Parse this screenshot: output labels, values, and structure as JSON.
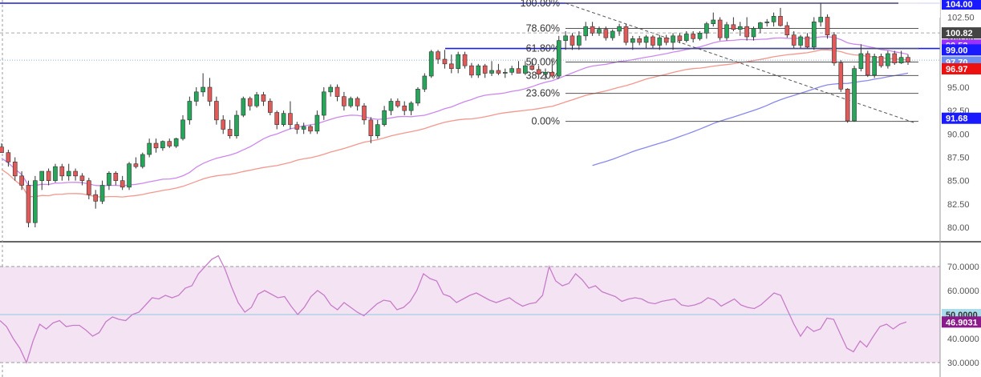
{
  "colors": {
    "up": "#26a65b",
    "down": "#e05a5a",
    "ma_fast": "#f4978e",
    "ma_mid": "#cc88ee",
    "ma_slow": "#8888ee",
    "resistance": "#1f1fcc",
    "fib": "#555555",
    "rsi_line": "#c77dc9",
    "rsi_band": "#f3e3f3"
  },
  "chart_data": [
    {
      "type": "candlestick",
      "ylim": [
        78.5,
        104.0
      ],
      "yticks": [
        "102.50",
        "100.00",
        "97.50",
        "95.00",
        "92.50",
        "90.00",
        "87.50",
        "85.00",
        "82.50",
        "80.00"
      ],
      "ytick_values": [
        102.5,
        100.0,
        97.5,
        95.0,
        92.5,
        90.0,
        87.5,
        85.0,
        82.5,
        80.0
      ],
      "price_tags": [
        {
          "label": "104.00",
          "value": 104.0,
          "bg": "#1a1aff",
          "fg": "#ffffff"
        },
        {
          "label": "100.82",
          "value": 100.82,
          "bg": "#444444",
          "fg": "#ffffff"
        },
        {
          "label": "99.52",
          "value": 99.52,
          "bg": "#9b30ff",
          "fg": "#ffffff"
        },
        {
          "label": "99.00",
          "value": 99.0,
          "bg": "#1a1aff",
          "fg": "#ffffff"
        },
        {
          "label": "97.70",
          "value": 97.7,
          "bg": "#6f8fef",
          "fg": "#ffffff"
        },
        {
          "label": "96.97",
          "value": 96.97,
          "bg": "#ee1111",
          "fg": "#ffffff"
        },
        {
          "label": "91.68",
          "value": 91.68,
          "bg": "#1a1aff",
          "fg": "#ffffff"
        }
      ],
      "fibonacci": [
        {
          "label": "100.00%",
          "value": 104.0
        },
        {
          "label": "78.60%",
          "value": 101.3
        },
        {
          "label": "61.80%",
          "value": 99.15
        },
        {
          "label": "50.00%",
          "value": 97.7
        },
        {
          "label": "38.20%",
          "value": 96.25
        },
        {
          "label": "23.60%",
          "value": 94.35
        },
        {
          "label": "0.00%",
          "value": 91.35
        }
      ],
      "resistance_levels": [
        104.0,
        99.15
      ],
      "reference_lines": [
        100.82,
        97.9
      ],
      "candles": [
        [
          88.6,
          89.0,
          88.0,
          88.0
        ],
        [
          88.0,
          88.3,
          86.5,
          87.0
        ],
        [
          87.0,
          87.5,
          85.0,
          85.5
        ],
        [
          85.5,
          86.0,
          84.0,
          84.5
        ],
        [
          84.5,
          85.0,
          80.0,
          80.5
        ],
        [
          80.5,
          85.5,
          80.0,
          85.0
        ],
        [
          85.0,
          86.0,
          84.0,
          86.0
        ],
        [
          86.0,
          86.3,
          84.5,
          85.0
        ],
        [
          85.0,
          86.8,
          84.8,
          86.5
        ],
        [
          86.5,
          86.8,
          85.0,
          85.5
        ],
        [
          85.5,
          86.8,
          85.0,
          86.0
        ],
        [
          86.0,
          86.3,
          85.0,
          85.5
        ],
        [
          85.5,
          85.8,
          84.5,
          85.0
        ],
        [
          85.0,
          85.3,
          83.0,
          83.5
        ],
        [
          83.5,
          84.0,
          82.0,
          82.8
        ],
        [
          82.8,
          85.0,
          82.5,
          84.5
        ],
        [
          84.5,
          86.0,
          84.0,
          85.8
        ],
        [
          85.8,
          86.0,
          84.5,
          85.0
        ],
        [
          85.0,
          85.5,
          84.0,
          84.3
        ],
        [
          84.3,
          87.0,
          84.0,
          86.8
        ],
        [
          86.8,
          87.5,
          86.3,
          86.5
        ],
        [
          86.5,
          88.0,
          86.3,
          87.8
        ],
        [
          87.8,
          89.5,
          87.5,
          89.0
        ],
        [
          89.0,
          89.5,
          88.0,
          88.5
        ],
        [
          88.5,
          89.3,
          88.2,
          89.2
        ],
        [
          89.2,
          89.5,
          88.5,
          88.7
        ],
        [
          88.7,
          89.6,
          88.5,
          89.5
        ],
        [
          89.5,
          92.0,
          89.3,
          91.5
        ],
        [
          91.5,
          94.0,
          91.0,
          93.5
        ],
        [
          93.5,
          95.0,
          93.0,
          94.5
        ],
        [
          94.5,
          96.5,
          94.0,
          95.0
        ],
        [
          95.0,
          96.0,
          93.0,
          93.5
        ],
        [
          93.5,
          94.0,
          91.0,
          91.5
        ],
        [
          91.5,
          92.0,
          90.0,
          90.5
        ],
        [
          90.5,
          91.5,
          89.5,
          89.8
        ],
        [
          89.8,
          92.5,
          89.5,
          92.0
        ],
        [
          92.0,
          94.0,
          91.8,
          93.8
        ],
        [
          93.8,
          94.0,
          92.5,
          93.0
        ],
        [
          93.0,
          94.5,
          92.8,
          94.2
        ],
        [
          94.2,
          94.5,
          93.0,
          93.5
        ],
        [
          93.5,
          93.8,
          92.0,
          92.3
        ],
        [
          92.3,
          92.5,
          90.5,
          91.0
        ],
        [
          91.0,
          92.5,
          90.8,
          92.2
        ],
        [
          92.2,
          93.5,
          90.5,
          91.0
        ],
        [
          91.0,
          91.3,
          90.0,
          90.5
        ],
        [
          90.5,
          91.2,
          90.0,
          90.8
        ],
        [
          90.8,
          91.0,
          90.0,
          90.3
        ],
        [
          90.3,
          92.5,
          90.0,
          92.0
        ],
        [
          92.0,
          95.0,
          91.5,
          94.5
        ],
        [
          94.5,
          95.3,
          94.0,
          95.0
        ],
        [
          95.0,
          95.3,
          93.5,
          94.0
        ],
        [
          94.0,
          94.5,
          92.5,
          93.0
        ],
        [
          93.0,
          94.0,
          92.8,
          93.8
        ],
        [
          93.8,
          94.0,
          92.5,
          93.0
        ],
        [
          93.0,
          93.3,
          91.0,
          91.5
        ],
        [
          91.5,
          91.8,
          89.0,
          89.8
        ],
        [
          89.8,
          91.5,
          89.5,
          91.0
        ],
        [
          91.0,
          93.0,
          90.8,
          92.5
        ],
        [
          92.5,
          93.8,
          92.0,
          93.5
        ],
        [
          93.5,
          93.8,
          92.8,
          93.0
        ],
        [
          93.0,
          93.5,
          92.0,
          92.5
        ],
        [
          92.5,
          93.5,
          92.0,
          93.3
        ],
        [
          93.3,
          95.0,
          93.0,
          94.8
        ],
        [
          94.8,
          96.5,
          94.5,
          96.2
        ],
        [
          96.2,
          99.0,
          96.0,
          98.8
        ],
        [
          98.8,
          99.0,
          97.5,
          98.0
        ],
        [
          98.0,
          99.0,
          97.0,
          97.5
        ],
        [
          97.5,
          98.5,
          96.5,
          97.0
        ],
        [
          97.0,
          98.8,
          96.5,
          98.5
        ],
        [
          98.5,
          98.8,
          97.0,
          97.3
        ],
        [
          97.3,
          97.6,
          96.0,
          96.3
        ],
        [
          96.3,
          97.5,
          96.0,
          97.3
        ],
        [
          97.3,
          97.5,
          96.0,
          96.5
        ],
        [
          96.5,
          97.8,
          96.2,
          96.8
        ],
        [
          96.8,
          97.5,
          96.3,
          96.5
        ],
        [
          96.5,
          97.0,
          96.0,
          96.6
        ],
        [
          96.6,
          97.3,
          96.3,
          97.0
        ],
        [
          97.0,
          97.8,
          96.5,
          96.5
        ],
        [
          96.5,
          97.8,
          96.3,
          97.3
        ],
        [
          97.3,
          98.0,
          96.8,
          96.9
        ],
        [
          96.9,
          97.3,
          96.0,
          96.4
        ],
        [
          96.4,
          97.0,
          95.8,
          96.6
        ],
        [
          96.6,
          98.0,
          96.0,
          96.2
        ],
        [
          96.2,
          100.5,
          96.0,
          100.0
        ],
        [
          100.0,
          101.0,
          99.0,
          100.5
        ],
        [
          100.5,
          100.8,
          99.0,
          99.5
        ],
        [
          99.5,
          101.0,
          99.0,
          100.5
        ],
        [
          100.5,
          102.0,
          100.0,
          101.5
        ],
        [
          101.5,
          102.0,
          100.5,
          100.8
        ],
        [
          100.8,
          101.5,
          100.5,
          101.2
        ],
        [
          101.2,
          101.5,
          100.0,
          100.3
        ],
        [
          100.3,
          101.2,
          100.0,
          101.0
        ],
        [
          101.0,
          101.8,
          100.5,
          101.5
        ],
        [
          101.5,
          101.8,
          99.5,
          99.8
        ],
        [
          99.8,
          100.5,
          99.0,
          100.2
        ],
        [
          100.2,
          100.5,
          99.5,
          99.8
        ],
        [
          99.8,
          100.6,
          99.2,
          100.4
        ],
        [
          100.4,
          100.6,
          99.2,
          99.5
        ],
        [
          99.5,
          100.6,
          99.0,
          100.3
        ],
        [
          100.3,
          100.6,
          99.5,
          99.8
        ],
        [
          99.8,
          100.8,
          99.0,
          100.5
        ],
        [
          100.5,
          100.8,
          99.7,
          100.0
        ],
        [
          100.0,
          101.0,
          99.8,
          100.7
        ],
        [
          100.7,
          101.0,
          99.8,
          100.2
        ],
        [
          100.2,
          101.0,
          100.0,
          100.8
        ],
        [
          100.8,
          102.0,
          100.2,
          101.8
        ],
        [
          101.8,
          103.0,
          101.5,
          102.2
        ],
        [
          102.2,
          102.5,
          100.0,
          100.3
        ],
        [
          100.3,
          102.0,
          100.0,
          101.7
        ],
        [
          101.7,
          102.5,
          101.0,
          101.2
        ],
        [
          101.2,
          102.0,
          100.5,
          101.5
        ],
        [
          101.5,
          102.5,
          100.0,
          100.4
        ],
        [
          100.4,
          101.5,
          100.0,
          101.3
        ],
        [
          101.3,
          102.0,
          100.8,
          101.9
        ],
        [
          101.9,
          102.3,
          101.5,
          102.0
        ],
        [
          102.0,
          103.0,
          101.5,
          102.6
        ],
        [
          102.6,
          103.5,
          101.5,
          101.6
        ],
        [
          101.6,
          102.0,
          100.3,
          100.6
        ],
        [
          100.6,
          101.0,
          99.2,
          99.5
        ],
        [
          99.5,
          100.6,
          99.2,
          100.4
        ],
        [
          100.4,
          100.8,
          99.2,
          99.3
        ],
        [
          99.3,
          102.5,
          99.0,
          102.0
        ],
        [
          102.0,
          104.0,
          101.5,
          102.5
        ],
        [
          102.5,
          102.8,
          100.2,
          100.6
        ],
        [
          100.6,
          100.9,
          97.3,
          97.6
        ],
        [
          97.6,
          97.9,
          94.5,
          94.8
        ],
        [
          94.8,
          94.9,
          91.2,
          91.4
        ],
        [
          91.4,
          97.3,
          91.3,
          97.0
        ],
        [
          97.0,
          99.6,
          96.7,
          98.6
        ],
        [
          98.6,
          98.9,
          96.1,
          96.3
        ],
        [
          96.3,
          98.6,
          96.0,
          98.3
        ],
        [
          98.3,
          98.6,
          97.1,
          97.3
        ],
        [
          97.3,
          98.9,
          97.0,
          98.6
        ],
        [
          98.6,
          98.9,
          97.4,
          97.6
        ],
        [
          97.6,
          98.9,
          97.5,
          98.2
        ],
        [
          98.2,
          98.5,
          97.4,
          97.7
        ]
      ]
    },
    {
      "type": "line",
      "ylim": [
        28.0,
        76.0
      ],
      "yticks": [
        "70.0000",
        "60.0000",
        "50.0000",
        "40.0000",
        "30.0000"
      ],
      "ytick_values": [
        70,
        60,
        50,
        40,
        30
      ],
      "band": [
        30,
        70
      ],
      "midline": 50,
      "current_tag": {
        "label": "46.9031",
        "value": 46.9031,
        "bg": "#8b1a8b",
        "fg": "#ffffff"
      },
      "mid_tag": {
        "label": "50.0000",
        "value": 50.0,
        "bg": "#a8dcea",
        "fg": "#333333"
      },
      "values": [
        47.5,
        45.0,
        40.0,
        36.0,
        30.0,
        39.0,
        46.0,
        44.0,
        46.5,
        47.5,
        45.0,
        45.5,
        45.5,
        43.5,
        41.0,
        42.5,
        47.0,
        49.0,
        48.0,
        47.5,
        50.0,
        51.0,
        54.0,
        57.0,
        56.5,
        58.0,
        57.0,
        58.0,
        61.0,
        62.0,
        67.0,
        70.0,
        73.0,
        74.5,
        69.0,
        61.5,
        55.0,
        51.0,
        53.0,
        58.5,
        60.0,
        58.5,
        57.0,
        57.5,
        53.5,
        50.0,
        53.0,
        57.5,
        60.0,
        58.0,
        54.0,
        52.0,
        55.0,
        53.0,
        51.0,
        49.5,
        52.0,
        54.5,
        56.0,
        55.5,
        52.0,
        53.0,
        55.5,
        60.0,
        67.0,
        65.0,
        64.0,
        58.5,
        57.5,
        55.0,
        56.5,
        58.0,
        59.0,
        57.5,
        56.0,
        55.0,
        56.0,
        57.0,
        55.0,
        53.5,
        54.5,
        55.0,
        58.0,
        70.0,
        64.0,
        62.0,
        63.0,
        67.0,
        64.5,
        61.0,
        62.0,
        59.5,
        58.5,
        57.5,
        55.5,
        56.5,
        57.0,
        56.5,
        55.0,
        54.5,
        55.5,
        56.0,
        56.5,
        54.0,
        53.5,
        54.0,
        55.0,
        57.0,
        56.0,
        53.5,
        55.0,
        56.5,
        54.0,
        53.0,
        52.5,
        54.0,
        56.5,
        59.0,
        58.0,
        52.0,
        46.0,
        41.0,
        45.0,
        43.0,
        44.0,
        48.5,
        48.0,
        42.0,
        36.0,
        34.5,
        39.0,
        36.5,
        41.0,
        45.0,
        46.0,
        44.0,
        46.0,
        46.9
      ]
    }
  ]
}
